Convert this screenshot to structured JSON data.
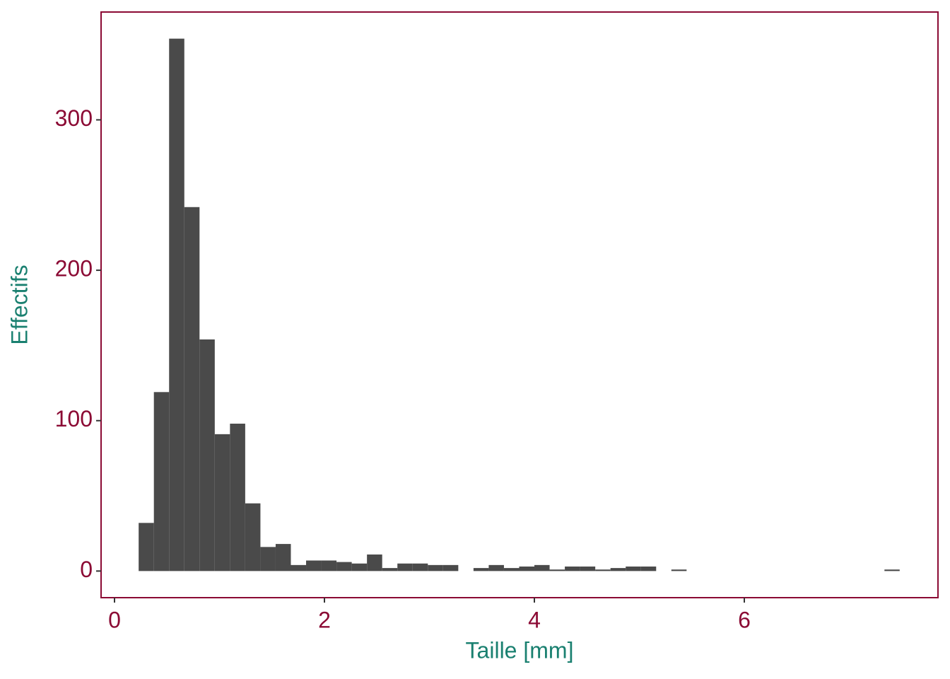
{
  "chart_data": {
    "type": "histogram",
    "xlabel": "Taille  [mm]",
    "ylabel": "Effectifs",
    "bins": [
      0.23,
      0.375,
      0.52,
      0.665,
      0.81,
      0.955,
      1.1,
      1.245,
      1.39,
      1.535,
      1.68,
      1.825,
      1.97,
      2.115,
      2.26,
      2.405,
      2.55,
      2.695,
      2.84,
      2.985,
      3.13,
      3.275,
      3.42,
      3.565,
      3.71,
      3.855,
      4.0,
      4.145,
      4.29,
      4.435,
      4.58,
      4.725,
      4.87,
      5.015,
      5.16,
      5.305,
      5.45,
      5.595,
      5.74,
      5.885,
      6.03,
      6.175,
      6.32,
      6.465,
      6.61,
      6.755,
      6.9,
      7.045,
      7.19,
      7.335,
      7.48
    ],
    "counts": [
      32,
      119,
      354,
      242,
      154,
      91,
      98,
      45,
      16,
      18,
      4,
      7,
      7,
      6,
      5,
      11,
      2,
      5,
      5,
      4,
      4,
      0,
      2,
      4,
      2,
      3,
      4,
      1,
      3,
      3,
      1,
      2,
      3,
      3,
      0,
      1,
      0,
      0,
      0,
      0,
      0,
      0,
      0,
      0,
      0,
      0,
      0,
      0,
      0,
      1
    ],
    "color": "#4a4a4a",
    "xlim": [
      -0.128,
      7.845
    ],
    "ylim": [
      -17.7,
      371.7
    ],
    "xticks": [
      0,
      2,
      4,
      6
    ],
    "yticks": [
      0,
      100,
      200,
      300
    ]
  }
}
